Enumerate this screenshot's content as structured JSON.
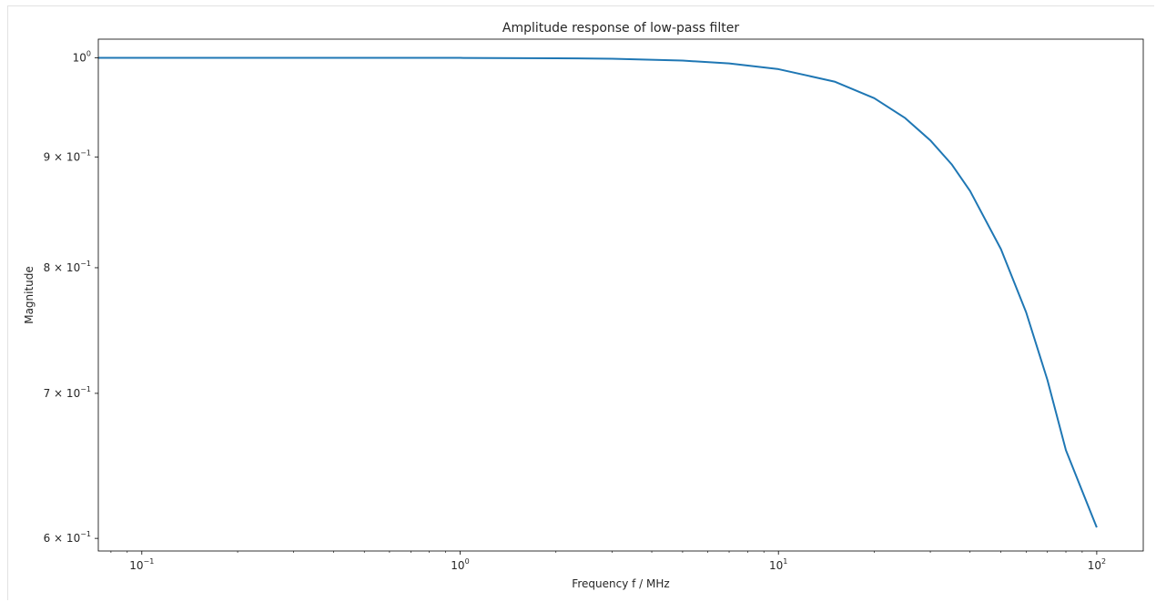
{
  "chart_data": {
    "type": "line",
    "title": "Amplitude response of low-pass filter",
    "xlabel": "Frequency f / MHz",
    "ylabel": "Magnitude",
    "xscale": "log",
    "yscale": "log",
    "xlim": [
      0.073,
      140
    ],
    "ylim": [
      0.592,
      1.02
    ],
    "grid": false,
    "line_color": "#1f77b4",
    "x_ticks": [
      {
        "value": 0.1,
        "base": "10",
        "exp": "−1"
      },
      {
        "value": 1,
        "base": "10",
        "exp": "0"
      },
      {
        "value": 10,
        "base": "10",
        "exp": "1"
      },
      {
        "value": 100,
        "base": "10",
        "exp": "2"
      }
    ],
    "y_ticks": [
      {
        "value": 1.0,
        "base": "10",
        "exp": "0"
      },
      {
        "value": 0.9,
        "base": "9 × 10",
        "exp": "−1"
      },
      {
        "value": 0.8,
        "base": "8 × 10",
        "exp": "−1"
      },
      {
        "value": 0.7,
        "base": "7 × 10",
        "exp": "−1"
      },
      {
        "value": 0.6,
        "base": "6 × 10",
        "exp": "−1"
      }
    ],
    "series": [
      {
        "x": [
          0.073,
          0.1,
          0.2,
          0.5,
          1,
          2,
          3,
          5,
          7,
          10,
          15,
          20,
          25,
          30,
          35,
          40,
          50,
          60,
          70,
          80,
          90,
          100
        ],
        "y": [
          1.0,
          1.0,
          1.0,
          1.0,
          0.9999,
          0.9995,
          0.999,
          0.997,
          0.994,
          0.988,
          0.975,
          0.958,
          0.938,
          0.916,
          0.893,
          0.868,
          0.816,
          0.763,
          0.71,
          0.659,
          0.631,
          0.607
        ]
      }
    ]
  }
}
